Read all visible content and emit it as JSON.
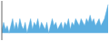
{
  "chart_data": {
    "type": "area",
    "values": [
      3,
      5,
      3,
      4,
      2,
      4,
      6,
      3,
      5,
      3,
      6,
      4,
      3,
      5,
      2,
      4,
      6,
      3,
      5,
      4,
      6,
      3,
      5,
      4,
      3,
      5,
      2,
      4,
      6,
      4,
      5,
      3,
      4,
      5,
      3,
      5,
      4,
      6,
      3,
      5,
      4,
      6,
      5,
      4,
      6,
      5,
      4,
      6,
      5,
      7,
      5,
      6,
      4,
      5,
      6,
      4,
      5,
      6,
      8,
      10
    ],
    "baseline": 2,
    "color": "#5baee0",
    "ylim": [
      0,
      11
    ],
    "tick_labels": false,
    "grid": false
  }
}
